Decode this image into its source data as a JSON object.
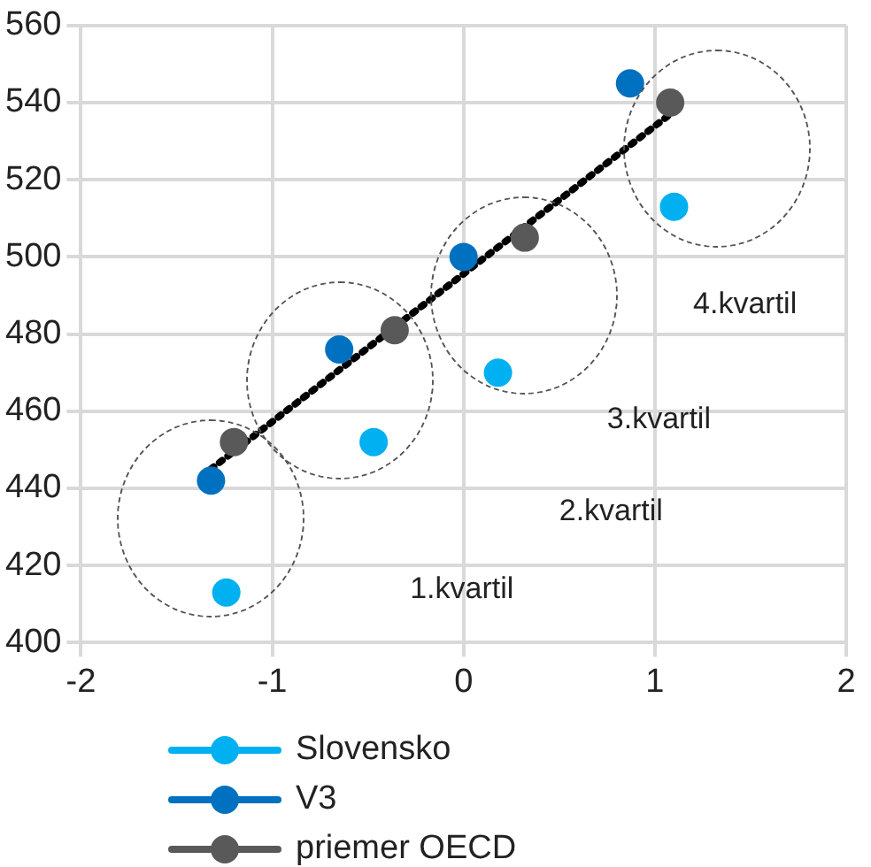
{
  "chart_data": {
    "type": "scatter",
    "xlim": [
      -2,
      2
    ],
    "xticks": [
      -2,
      -1,
      0,
      1,
      2
    ],
    "ylim": [
      400,
      560
    ],
    "yticks": [
      400,
      420,
      440,
      460,
      480,
      500,
      520,
      540,
      560
    ],
    "grid": true,
    "legend": "bottom",
    "marker": "circle",
    "annotations": [
      "1.kvartil",
      "2.kvartil",
      "3.kvartil",
      "4.kvartil"
    ],
    "series": [
      {
        "name": "Slovensko",
        "color": "#00b0f0",
        "x": [
          -1.24,
          -0.47,
          0.18,
          1.1
        ],
        "values": [
          413,
          452,
          470,
          513
        ]
      },
      {
        "name": "V3",
        "color": "#0070c0",
        "x": [
          -1.32,
          -0.65,
          0,
          0.87
        ],
        "values": [
          442,
          476,
          500,
          545
        ]
      },
      {
        "name": "priemer OECD",
        "color": "#595959",
        "x": [
          -1.2,
          -0.36,
          0.32,
          1.08
        ],
        "values": [
          452,
          481,
          505,
          540
        ]
      },
      {
        "type": "line",
        "color": "#000000",
        "line_style": "dotted",
        "marker": "none",
        "x": [
          -1.32,
          1.08
        ],
        "values": [
          445,
          537
        ]
      }
    ]
  }
}
